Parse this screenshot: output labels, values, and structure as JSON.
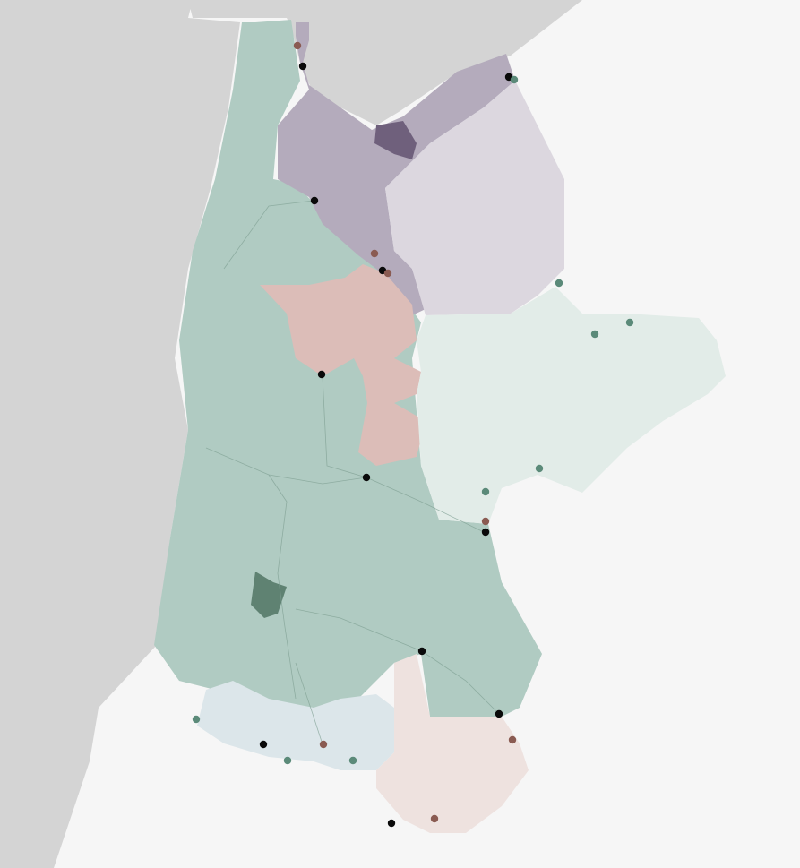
{
  "map": {
    "colors": {
      "background": "#f6f6f6",
      "sea": "#d4d4d4",
      "region_green": "#b0cbc2",
      "region_green_dark": "#5f8272",
      "region_purple": "#b4abbc",
      "region_purple_light": "#dcd7df",
      "region_purple_dark": "#6f607c",
      "region_pink": "#dcbdb8",
      "region_green_light": "#e2ece8",
      "region_pink_light": "#eee2df",
      "region_blue_light": "#dce6ea",
      "marker_black": "#0a0a0a",
      "marker_brown": "#8a5b52",
      "marker_green": "#5b8a79"
    }
  }
}
